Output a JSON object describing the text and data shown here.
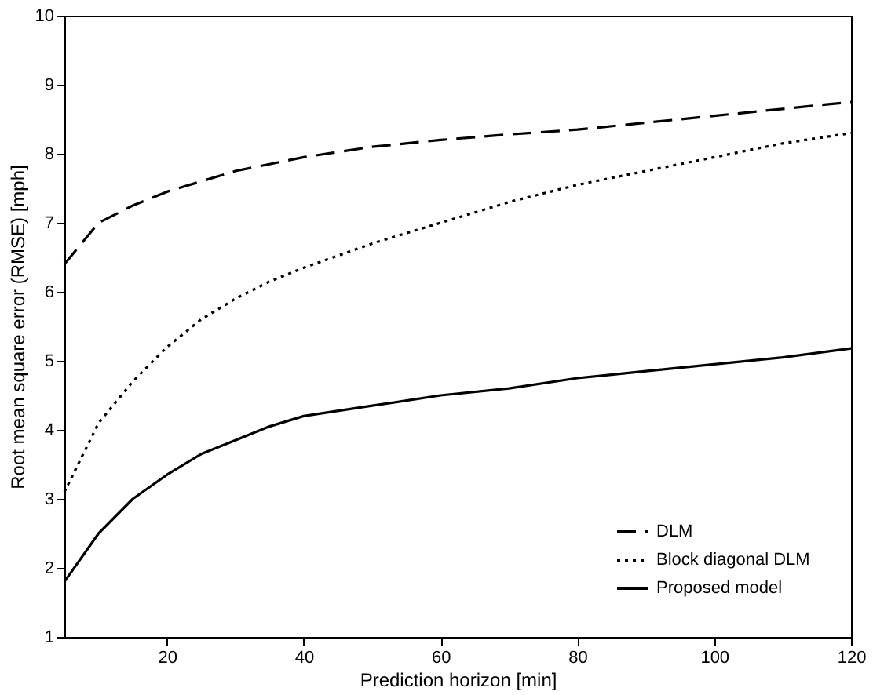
{
  "chart_data": {
    "type": "line",
    "xlabel": "Prediction horizon [min]",
    "ylabel": "Root mean square error (RMSE) [mph]",
    "xlim": [
      5,
      120
    ],
    "xticks": [
      20,
      40,
      60,
      80,
      100,
      120
    ],
    "ylim": [
      1,
      10
    ],
    "yticks": [
      1,
      2,
      3,
      4,
      5,
      6,
      7,
      8,
      9,
      10
    ],
    "grid": false,
    "legend": "bottom right",
    "marker": "none",
    "x": [
      5,
      10,
      15,
      20,
      25,
      30,
      35,
      40,
      50,
      60,
      70,
      80,
      90,
      100,
      110,
      120
    ],
    "series": [
      {
        "name": "DLM",
        "color": "#000000",
        "line_style": "dashed",
        "values": [
          6.4,
          7.0,
          7.25,
          7.45,
          7.6,
          7.75,
          7.85,
          7.95,
          8.1,
          8.2,
          8.28,
          8.35,
          8.45,
          8.55,
          8.65,
          8.75
        ]
      },
      {
        "name": "Block diagonal DLM",
        "color": "#000000",
        "line_style": "dotted",
        "values": [
          3.1,
          4.1,
          4.7,
          5.2,
          5.6,
          5.9,
          6.15,
          6.35,
          6.7,
          7.0,
          7.3,
          7.55,
          7.75,
          7.95,
          8.15,
          8.3
        ]
      },
      {
        "name": "Proposed model",
        "color": "#000000",
        "line_style": "solid",
        "values": [
          1.8,
          2.5,
          3.0,
          3.35,
          3.65,
          3.85,
          4.05,
          4.2,
          4.35,
          4.5,
          4.6,
          4.75,
          4.85,
          4.95,
          5.05,
          5.18
        ]
      }
    ]
  }
}
